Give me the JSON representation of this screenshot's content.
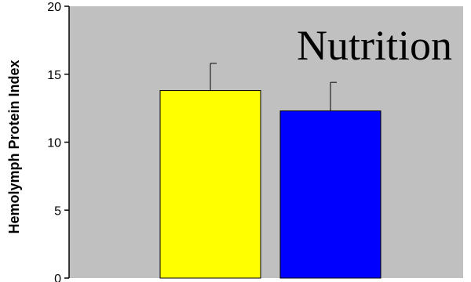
{
  "chart_data": {
    "type": "bar",
    "title": "Nutrition",
    "xlabel": "",
    "ylabel": "Hemolymph Protein Index",
    "ylim": [
      0,
      20
    ],
    "yticks": [
      0,
      5,
      10,
      15,
      20
    ],
    "grid": false,
    "categories": [
      "",
      ""
    ],
    "values": [
      13.8,
      12.3
    ],
    "errors": [
      2.0,
      2.1
    ],
    "colors": [
      "#ffff00",
      "#0000ff"
    ],
    "background": "#c0c0c0"
  }
}
